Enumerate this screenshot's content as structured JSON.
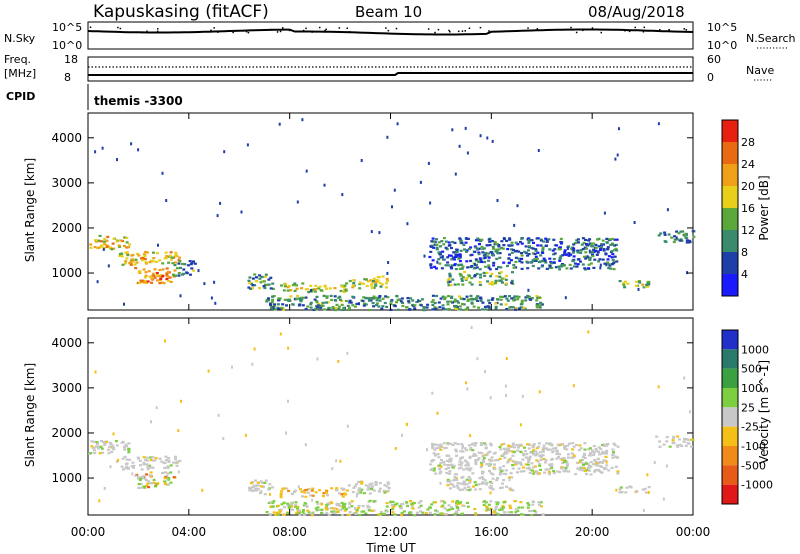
{
  "header": {
    "station": "Kapuskasing (fitACF)",
    "beam": "Beam 10",
    "date": "08/Aug/2018"
  },
  "strip_nsky": {
    "left_label": "N.Sky",
    "right_label": "N.Search",
    "left_ticks": [
      "10^5",
      "10^0"
    ],
    "right_ticks": [
      "10^5",
      "10^0"
    ]
  },
  "strip_freq": {
    "left_label": "Freq.",
    "left_unit": "[MHz]",
    "right_label": "Nave",
    "left_ticks": [
      "18",
      "8"
    ],
    "right_ticks": [
      "60",
      "0"
    ]
  },
  "cpid": {
    "label": "CPID",
    "value": "themis -3300"
  },
  "chart_data": [
    {
      "type": "heatmap",
      "name": "power",
      "ylabel": "Slant Range [km]",
      "ylim": [
        180,
        4550
      ],
      "yticks": [
        1000,
        2000,
        3000,
        4000
      ],
      "colorbar": {
        "label": "Power [dB]",
        "ticks": [
          "4",
          "8",
          "12",
          "16",
          "20",
          "24",
          "28"
        ],
        "colors": [
          "#1a1aff",
          "#1e3ea8",
          "#3a8a6c",
          "#5aa83a",
          "#e8cf1a",
          "#f0a018",
          "#ea6a12",
          "#e82010"
        ]
      },
      "regions": [
        {
          "x": [
            0.0,
            1.6
          ],
          "y": [
            1550,
            1850
          ],
          "level": 0.65
        },
        {
          "x": [
            1.2,
            3.6
          ],
          "y": [
            1200,
            1500
          ],
          "level": 0.6
        },
        {
          "x": [
            1.8,
            3.4
          ],
          "y": [
            800,
            1150
          ],
          "level": 0.75
        },
        {
          "x": [
            3.3,
            4.2
          ],
          "y": [
            950,
            1300
          ],
          "level": 0.3
        },
        {
          "x": [
            6.3,
            7.3
          ],
          "y": [
            650,
            1000
          ],
          "level": 0.35
        },
        {
          "x": [
            7.6,
            10.3
          ],
          "y": [
            600,
            800
          ],
          "level": 0.55
        },
        {
          "x": [
            10.3,
            11.9
          ],
          "y": [
            680,
            950
          ],
          "level": 0.5
        },
        {
          "x": [
            14.2,
            16.8
          ],
          "y": [
            750,
            1050
          ],
          "level": 0.4
        },
        {
          "x": [
            13.5,
            21.0
          ],
          "y": [
            1100,
            1800
          ],
          "level": 0.2
        },
        {
          "x": [
            21.0,
            22.2
          ],
          "y": [
            700,
            850
          ],
          "level": 0.45
        },
        {
          "x": [
            22.5,
            24.0
          ],
          "y": [
            1700,
            1950
          ],
          "level": 0.25
        },
        {
          "x": [
            7.0,
            18.0
          ],
          "y": [
            200,
            520
          ],
          "level": 0.3
        }
      ]
    },
    {
      "type": "heatmap",
      "name": "velocity",
      "xlabel": "Time UT",
      "ylabel": "Slant Range [km]",
      "xlim": [
        0,
        24
      ],
      "xticks": [
        "00:00",
        "04:00",
        "08:00",
        "12:00",
        "16:00",
        "20:00",
        "00:00"
      ],
      "ylim": [
        180,
        4550
      ],
      "yticks": [
        1000,
        2000,
        3000,
        4000
      ],
      "colorbar": {
        "label": "Velocity [m s^-1]",
        "ticks": [
          "1000",
          "500",
          "100",
          "25",
          "-25",
          "-100",
          "-500",
          "-1000"
        ],
        "colors": [
          "#2030c8",
          "#2a7a6c",
          "#3aa040",
          "#7cd040",
          "#c8c8c8",
          "#f4c018",
          "#f08a18",
          "#e85a18",
          "#e01818"
        ]
      },
      "regions": [
        {
          "x": [
            0.0,
            1.6
          ],
          "y": [
            1550,
            1850
          ],
          "kind": "grey"
        },
        {
          "x": [
            1.2,
            3.6
          ],
          "y": [
            1200,
            1500
          ],
          "kind": "grey"
        },
        {
          "x": [
            1.8,
            3.4
          ],
          "y": [
            800,
            1150
          ],
          "kind": "mixed"
        },
        {
          "x": [
            6.3,
            7.3
          ],
          "y": [
            650,
            1000
          ],
          "kind": "grey"
        },
        {
          "x": [
            7.6,
            10.3
          ],
          "y": [
            600,
            800
          ],
          "kind": "orange"
        },
        {
          "x": [
            10.3,
            11.9
          ],
          "y": [
            680,
            950
          ],
          "kind": "grey"
        },
        {
          "x": [
            14.2,
            16.8
          ],
          "y": [
            750,
            1050
          ],
          "kind": "grey"
        },
        {
          "x": [
            13.5,
            21.0
          ],
          "y": [
            1100,
            1800
          ],
          "kind": "grey"
        },
        {
          "x": [
            21.0,
            22.2
          ],
          "y": [
            700,
            850
          ],
          "kind": "grey"
        },
        {
          "x": [
            22.5,
            24.0
          ],
          "y": [
            1700,
            1950
          ],
          "kind": "grey"
        },
        {
          "x": [
            7.0,
            18.0
          ],
          "y": [
            200,
            520
          ],
          "kind": "green"
        }
      ]
    }
  ]
}
